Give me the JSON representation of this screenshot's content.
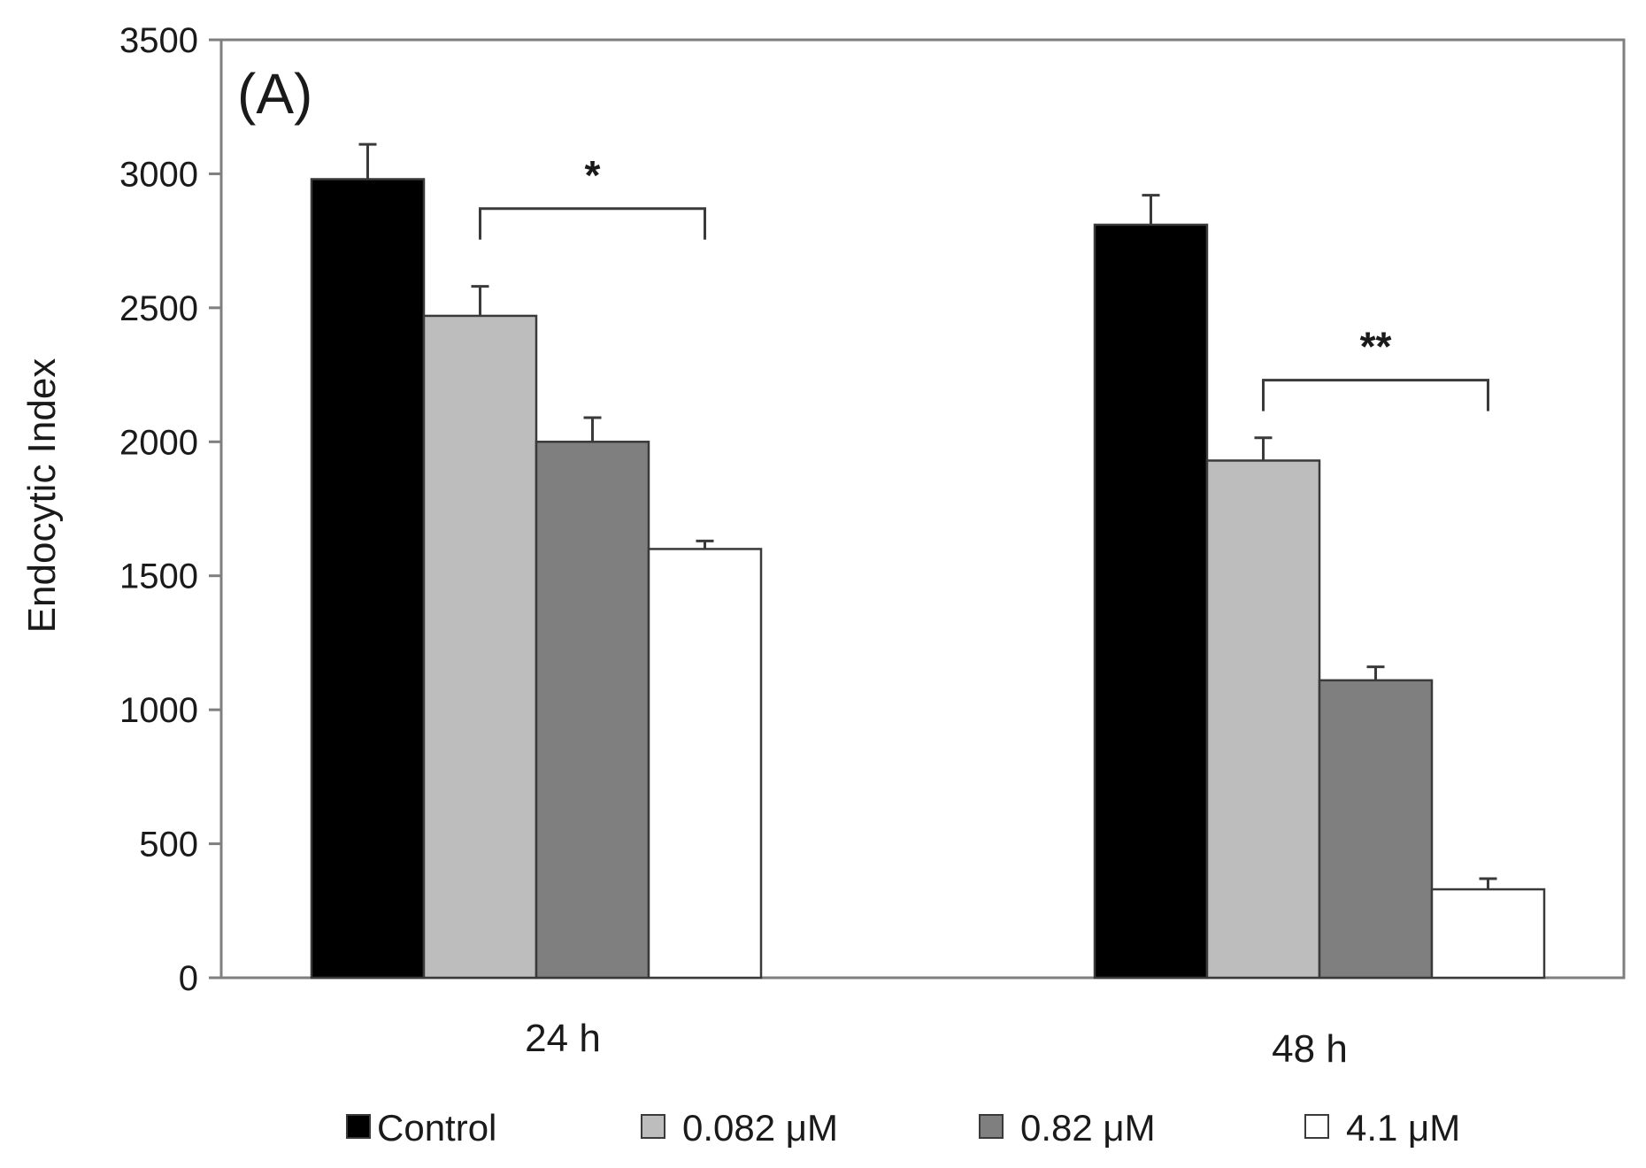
{
  "chart_data": {
    "type": "bar",
    "panel_label": "(A)",
    "title": "",
    "xlabel": "",
    "ylabel": "Endocytic Index",
    "ylim": [
      0,
      3500
    ],
    "yticks": [
      0,
      500,
      1000,
      1500,
      2000,
      2500,
      3000,
      3500
    ],
    "categories": [
      "24 h",
      "48 h"
    ],
    "series": [
      {
        "name": "Control",
        "color": "#000000",
        "values": [
          2980,
          2810
        ],
        "errors": [
          130,
          110
        ]
      },
      {
        "name": "0.082 μM",
        "color": "#bdbdbd",
        "values": [
          2470,
          1930
        ],
        "errors": [
          110,
          85
        ]
      },
      {
        "name": "0.82 μM",
        "color": "#7f7f7f",
        "values": [
          2000,
          1110
        ],
        "errors": [
          90,
          50
        ]
      },
      {
        "name": "4.1 μM",
        "color": "#ffffff",
        "values": [
          1600,
          330
        ],
        "errors": [
          30,
          40
        ]
      }
    ],
    "significance": [
      {
        "category": "24 h",
        "from_series": "0.082 μM",
        "to_series": "4.1 μM",
        "label": "*",
        "level": 2870
      },
      {
        "category": "48 h",
        "from_series": "0.082 μM",
        "to_series": "4.1 μM",
        "label": "**",
        "level": 2230
      }
    ],
    "legend_position": "bottom"
  }
}
